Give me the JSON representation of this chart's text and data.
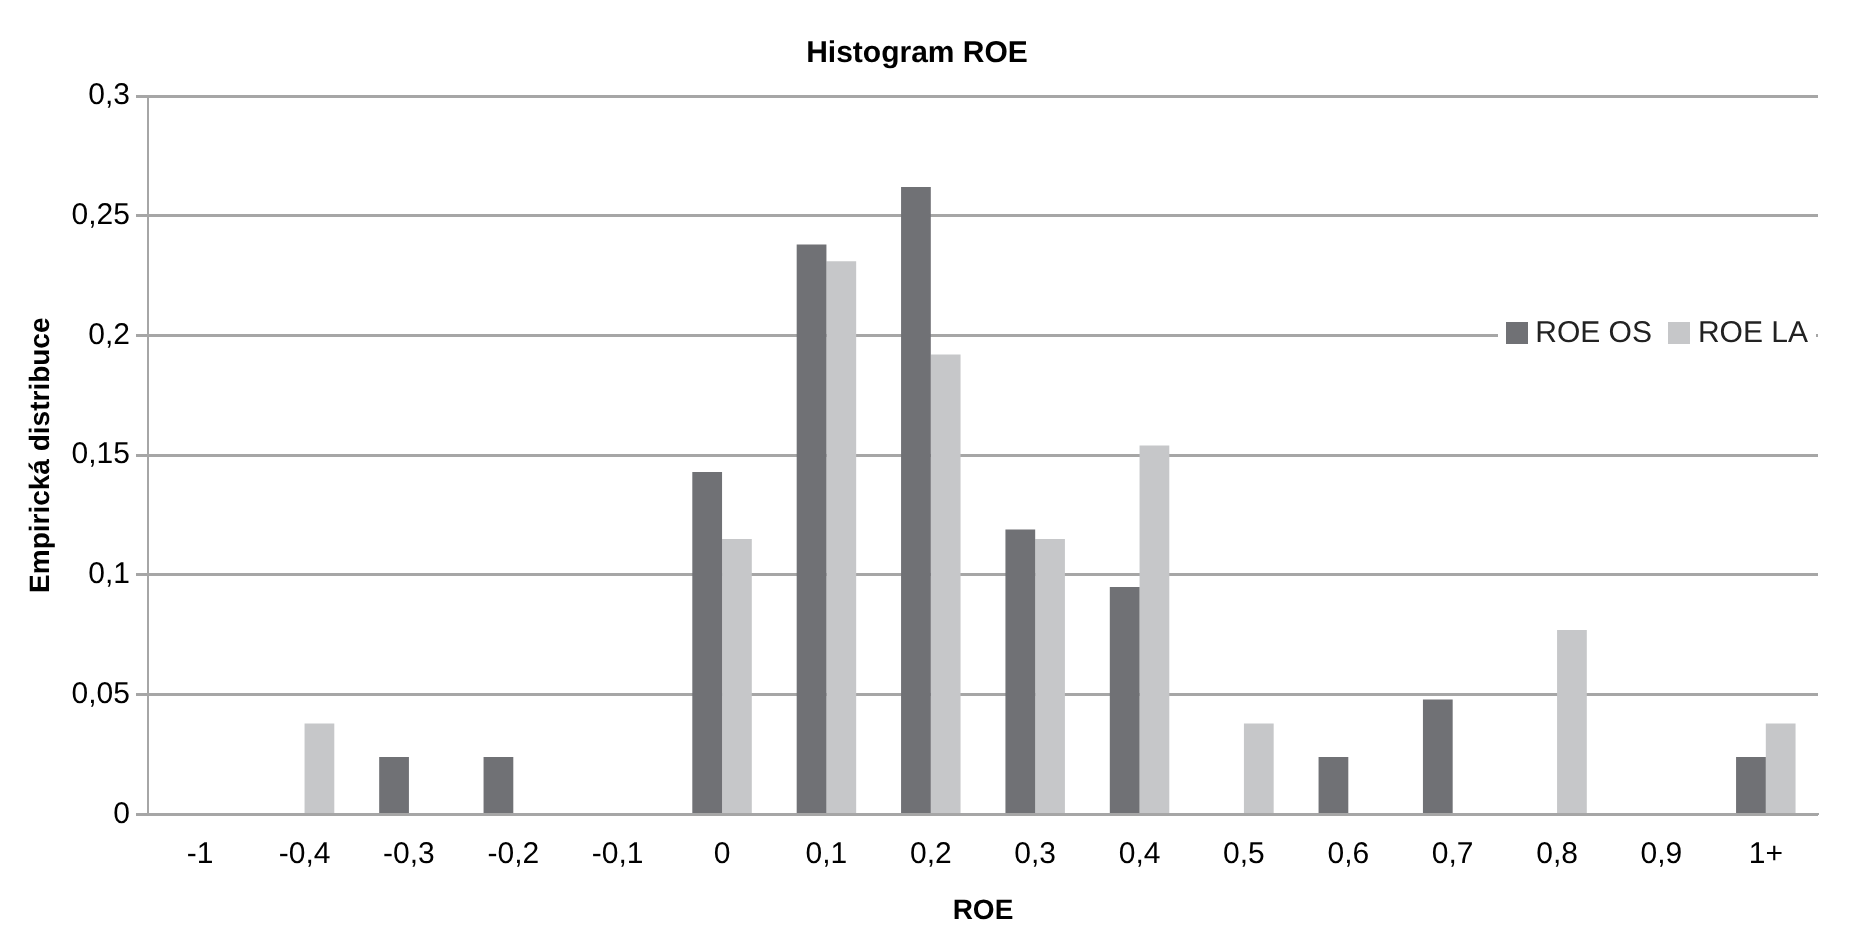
{
  "chart_data": {
    "type": "bar",
    "title": "Histogram ROE",
    "xlabel": "ROE",
    "ylabel": "Empirická distribuce",
    "categories": [
      "-1",
      "-0,4",
      "-0,3",
      "-0,2",
      "-0,1",
      "0",
      "0,1",
      "0,2",
      "0,3",
      "0,4",
      "0,5",
      "0,6",
      "0,7",
      "0,8",
      "0,9",
      "1+"
    ],
    "series": [
      {
        "name": "ROE OS",
        "color": "#707175",
        "values": [
          0,
          0,
          0.024,
          0.024,
          0,
          0.143,
          0.238,
          0.262,
          0.119,
          0.095,
          0,
          0.024,
          0.048,
          0,
          0,
          0.024
        ]
      },
      {
        "name": "ROE LA",
        "color": "#c6c7c9",
        "values": [
          0,
          0.038,
          0,
          0,
          0,
          0.115,
          0.231,
          0.192,
          0.115,
          0.154,
          0.038,
          0,
          0,
          0.077,
          0,
          0.038
        ]
      }
    ],
    "ylim": [
      0,
      0.3
    ],
    "yticks": [
      {
        "value": 0,
        "label": "0"
      },
      {
        "value": 0.05,
        "label": "0,05"
      },
      {
        "value": 0.1,
        "label": "0,1"
      },
      {
        "value": 0.15,
        "label": "0,15"
      },
      {
        "value": 0.2,
        "label": "0,2"
      },
      {
        "value": 0.25,
        "label": "0,25"
      },
      {
        "value": 0.3,
        "label": "0,3"
      }
    ],
    "grid": "y",
    "legend": "right"
  }
}
